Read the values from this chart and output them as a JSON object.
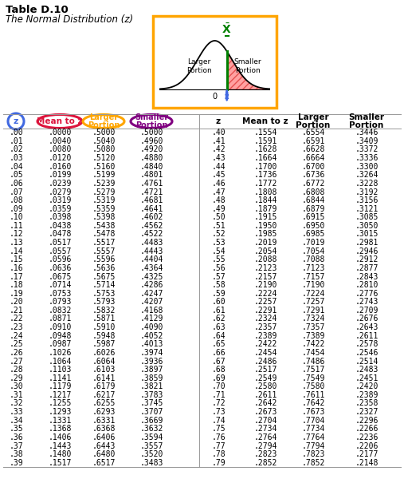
{
  "title": "Table D.10",
  "subtitle": "The Normal Distribution (z)",
  "z_circle_color": "#4169E1",
  "mean_circle_color": "#DC143C",
  "larger_circle_color": "#FFA500",
  "smaller_circle_color": "#800080",
  "diagram_box_color": "#FFA500",
  "data_left": [
    [
      ".00",
      ".0000",
      ".5000",
      ".5000"
    ],
    [
      ".01",
      ".0040",
      ".5040",
      ".4960"
    ],
    [
      ".02",
      ".0080",
      ".5080",
      ".4920"
    ],
    [
      ".03",
      ".0120",
      ".5120",
      ".4880"
    ],
    [
      ".04",
      ".0160",
      ".5160",
      ".4840"
    ],
    [
      ".05",
      ".0199",
      ".5199",
      ".4801"
    ],
    [
      ".06",
      ".0239",
      ".5239",
      ".4761"
    ],
    [
      ".07",
      ".0279",
      ".5279",
      ".4721"
    ],
    [
      ".08",
      ".0319",
      ".5319",
      ".4681"
    ],
    [
      ".09",
      ".0359",
      ".5359",
      ".4641"
    ],
    [
      ".10",
      ".0398",
      ".5398",
      ".4602"
    ],
    [
      ".11",
      ".0438",
      ".5438",
      ".4562"
    ],
    [
      ".12",
      ".0478",
      ".5478",
      ".4522"
    ],
    [
      ".13",
      ".0517",
      ".5517",
      ".4483"
    ],
    [
      ".14",
      ".0557",
      ".5557",
      ".4443"
    ],
    [
      ".15",
      ".0596",
      ".5596",
      ".4404"
    ],
    [
      ".16",
      ".0636",
      ".5636",
      ".4364"
    ],
    [
      ".17",
      ".0675",
      ".5675",
      ".4325"
    ],
    [
      ".18",
      ".0714",
      ".5714",
      ".4286"
    ],
    [
      ".19",
      ".0753",
      ".5753",
      ".4247"
    ],
    [
      ".20",
      ".0793",
      ".5793",
      ".4207"
    ],
    [
      ".21",
      ".0832",
      ".5832",
      ".4168"
    ],
    [
      ".22",
      ".0871",
      ".5871",
      ".4129"
    ],
    [
      ".23",
      ".0910",
      ".5910",
      ".4090"
    ],
    [
      ".24",
      ".0948",
      ".5948",
      ".4052"
    ],
    [
      ".25",
      ".0987",
      ".5987",
      ".4013"
    ],
    [
      ".26",
      ".1026",
      ".6026",
      ".3974"
    ],
    [
      ".27",
      ".1064",
      ".6064",
      ".3936"
    ],
    [
      ".28",
      ".1103",
      ".6103",
      ".3897"
    ],
    [
      ".29",
      ".1141",
      ".6141",
      ".3859"
    ],
    [
      ".30",
      ".1179",
      ".6179",
      ".3821"
    ],
    [
      ".31",
      ".1217",
      ".6217",
      ".3783"
    ],
    [
      ".32",
      ".1255",
      ".6255",
      ".3745"
    ],
    [
      ".33",
      ".1293",
      ".6293",
      ".3707"
    ],
    [
      ".34",
      ".1331",
      ".6331",
      ".3669"
    ],
    [
      ".35",
      ".1368",
      ".6368",
      ".3632"
    ],
    [
      ".36",
      ".1406",
      ".6406",
      ".3594"
    ],
    [
      ".37",
      ".1443",
      ".6443",
      ".3557"
    ],
    [
      ".38",
      ".1480",
      ".6480",
      ".3520"
    ],
    [
      ".39",
      ".1517",
      ".6517",
      ".3483"
    ]
  ],
  "data_right": [
    [
      ".40",
      ".1554",
      ".6554",
      ".3446"
    ],
    [
      ".41",
      ".1591",
      ".6591",
      ".3409"
    ],
    [
      ".42",
      ".1628",
      ".6628",
      ".3372"
    ],
    [
      ".43",
      ".1664",
      ".6664",
      ".3336"
    ],
    [
      ".44",
      ".1700",
      ".6700",
      ".3300"
    ],
    [
      ".45",
      ".1736",
      ".6736",
      ".3264"
    ],
    [
      ".46",
      ".1772",
      ".6772",
      ".3228"
    ],
    [
      ".47",
      ".1808",
      ".6808",
      ".3192"
    ],
    [
      ".48",
      ".1844",
      ".6844",
      ".3156"
    ],
    [
      ".49",
      ".1879",
      ".6879",
      ".3121"
    ],
    [
      ".50",
      ".1915",
      ".6915",
      ".3085"
    ],
    [
      ".51",
      ".1950",
      ".6950",
      ".3050"
    ],
    [
      ".52",
      ".1985",
      ".6985",
      ".3015"
    ],
    [
      ".53",
      ".2019",
      ".7019",
      ".2981"
    ],
    [
      ".54",
      ".2054",
      ".7054",
      ".2946"
    ],
    [
      ".55",
      ".2088",
      ".7088",
      ".2912"
    ],
    [
      ".56",
      ".2123",
      ".7123",
      ".2877"
    ],
    [
      ".57",
      ".2157",
      ".7157",
      ".2843"
    ],
    [
      ".58",
      ".2190",
      ".7190",
      ".2810"
    ],
    [
      ".59",
      ".2224",
      ".7224",
      ".2776"
    ],
    [
      ".60",
      ".2257",
      ".7257",
      ".2743"
    ],
    [
      ".61",
      ".2291",
      ".7291",
      ".2709"
    ],
    [
      ".62",
      ".2324",
      ".7324",
      ".2676"
    ],
    [
      ".63",
      ".2357",
      ".7357",
      ".2643"
    ],
    [
      ".64",
      ".2389",
      ".7389",
      ".2611"
    ],
    [
      ".65",
      ".2422",
      ".7422",
      ".2578"
    ],
    [
      ".66",
      ".2454",
      ".7454",
      ".2546"
    ],
    [
      ".67",
      ".2486",
      ".7486",
      ".2514"
    ],
    [
      ".68",
      ".2517",
      ".7517",
      ".2483"
    ],
    [
      ".69",
      ".2549",
      ".7549",
      ".2451"
    ],
    [
      ".70",
      ".2580",
      ".7580",
      ".2420"
    ],
    [
      ".71",
      ".2611",
      ".7611",
      ".2389"
    ],
    [
      ".72",
      ".2642",
      ".7642",
      ".2358"
    ],
    [
      ".73",
      ".2673",
      ".7673",
      ".2327"
    ],
    [
      ".74",
      ".2704",
      ".7704",
      ".2296"
    ],
    [
      ".75",
      ".2734",
      ".7734",
      ".2266"
    ],
    [
      ".76",
      ".2764",
      ".7764",
      ".2236"
    ],
    [
      ".77",
      ".2794",
      ".7794",
      ".2206"
    ],
    [
      ".78",
      ".2823",
      ".7823",
      ".2177"
    ],
    [
      ".79",
      ".2852",
      ".7852",
      ".2148"
    ]
  ]
}
